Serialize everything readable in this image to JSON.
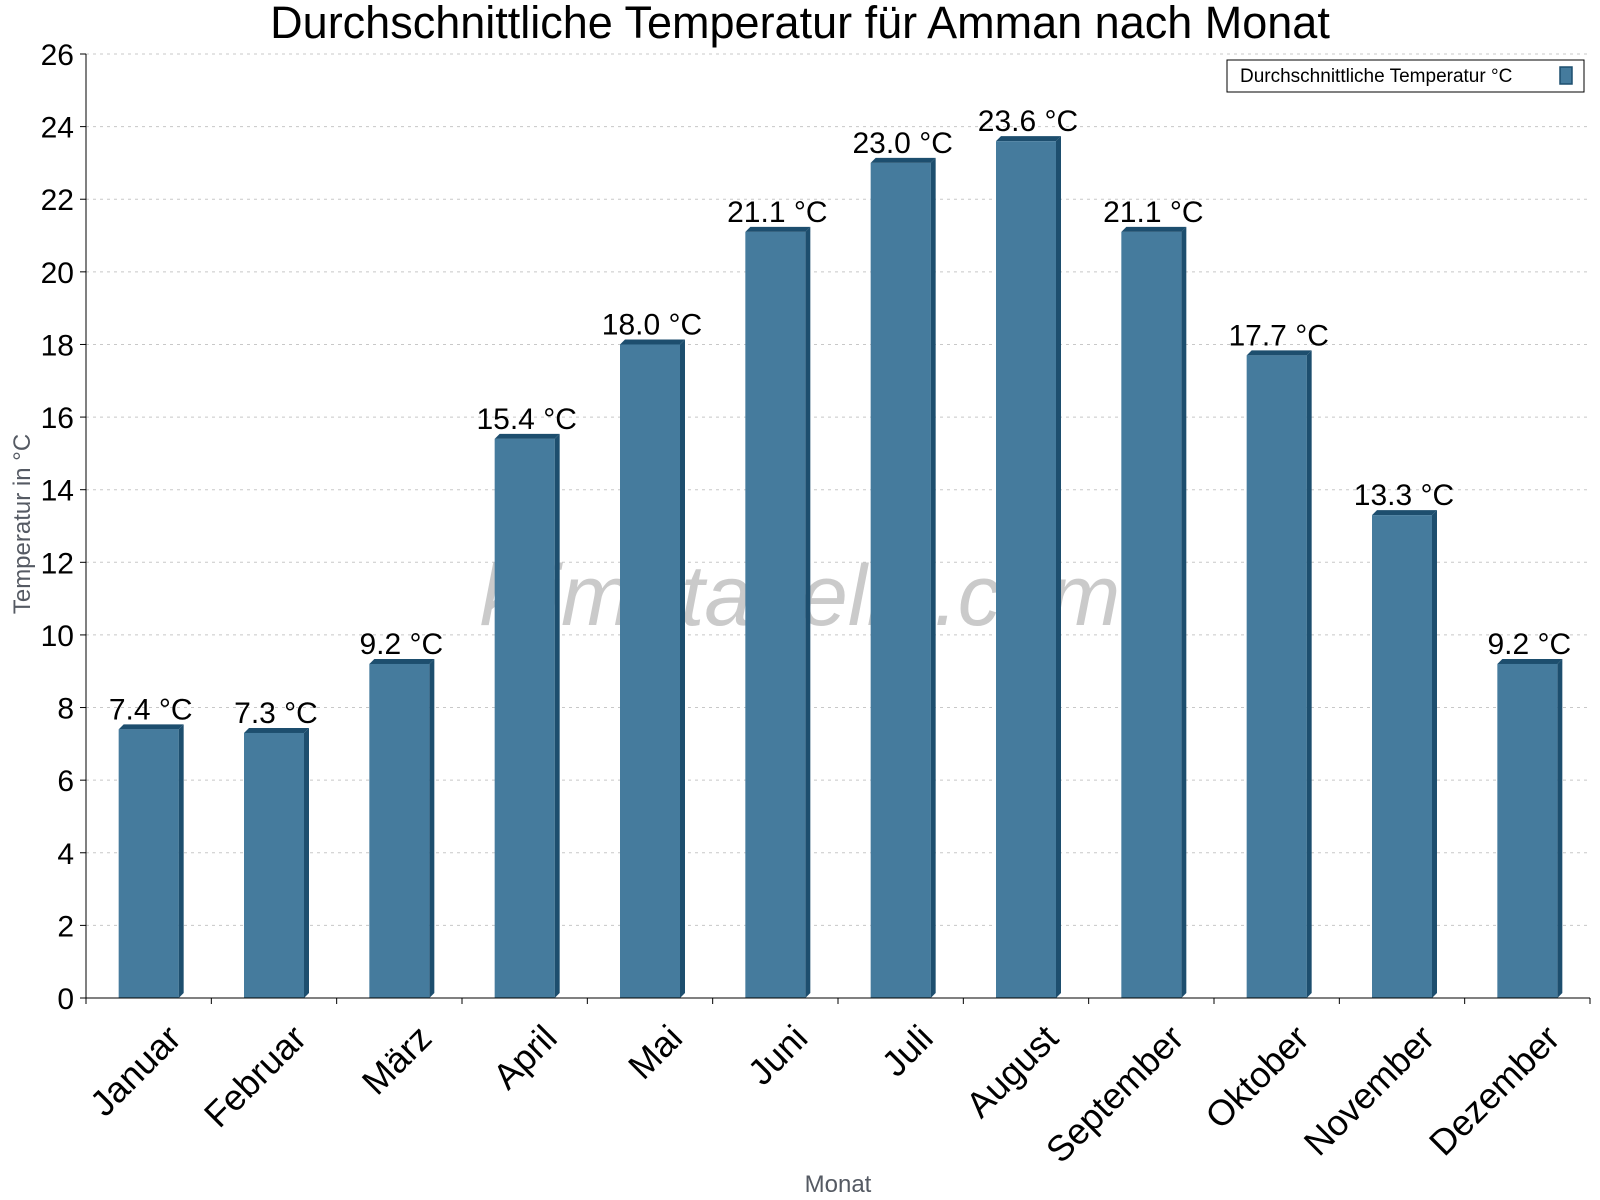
{
  "chart_data": {
    "type": "bar",
    "title": "Durchschnittliche Temperatur für Amman nach Monat",
    "xlabel": "Monat",
    "ylabel": "Temperatur in °C",
    "categories": [
      "Januar",
      "Februar",
      "März",
      "April",
      "Mai",
      "Juni",
      "Juli",
      "August",
      "September",
      "Oktober",
      "November",
      "Dezember"
    ],
    "series": [
      {
        "name": "Durchschnittliche Temperatur °C",
        "values": [
          7.4,
          7.3,
          9.2,
          15.4,
          18.0,
          21.1,
          23.0,
          23.6,
          21.1,
          17.7,
          13.3,
          9.2
        ]
      }
    ],
    "data_labels": [
      "7.4 °C",
      "7.3 °C",
      "9.2 °C",
      "15.4 °C",
      "18.0 °C",
      "21.1 °C",
      "23.0 °C",
      "23.6 °C",
      "21.1 °C",
      "17.7 °C",
      "13.3 °C",
      "9.2 °C"
    ],
    "ylim": [
      0,
      26
    ],
    "yticks": [
      0,
      2,
      4,
      6,
      8,
      10,
      12,
      14,
      16,
      18,
      20,
      22,
      24,
      26
    ],
    "grid": true,
    "legend_position": "top-right",
    "bar_color": "#457b9d",
    "bar_edge_color": "#1d4e6e",
    "watermark": "klimatabelle.com"
  }
}
